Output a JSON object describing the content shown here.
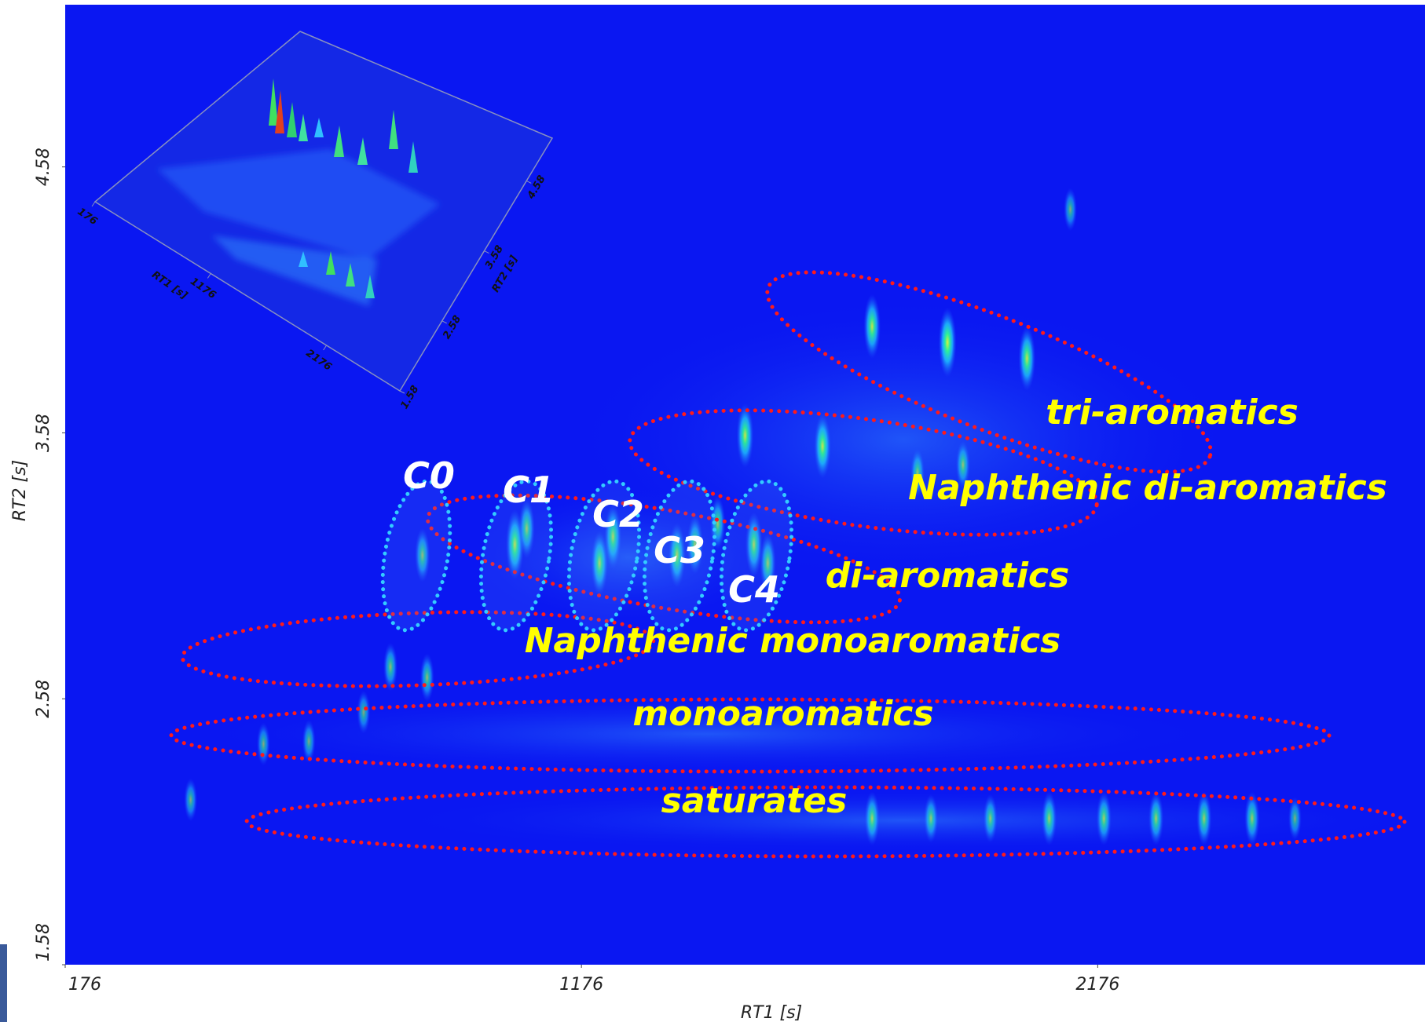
{
  "chart_data": {
    "type": "contour",
    "xlabel": "RT1 [s]",
    "ylabel": "RT2 [s]",
    "xlim": [
      176,
      2810
    ],
    "ylim": [
      1.58,
      5.19
    ],
    "xticks": [
      176,
      1176,
      2176
    ],
    "yticks": [
      1.58,
      2.58,
      3.58,
      4.58
    ],
    "x": [
      868,
      1047,
      1070,
      1211,
      1237,
      1361,
      1396,
      1510,
      1537,
      1440,
      1493,
      1643,
      1739,
      1885,
      2039,
      2123,
      1827,
      1915,
      1739,
      1853,
      1968,
      2082,
      2188,
      2289,
      2382,
      2475,
      2558,
      560,
      648,
      754,
      806,
      877,
      419
    ],
    "values": [
      3.12,
      3.16,
      3.22,
      3.09,
      3.19,
      3.12,
      3.16,
      3.16,
      3.09,
      3.24,
      3.57,
      3.53,
      3.98,
      3.92,
      3.86,
      4.42,
      3.43,
      3.46,
      2.13,
      2.13,
      2.13,
      2.13,
      2.13,
      2.13,
      2.13,
      2.13,
      2.13,
      2.41,
      2.42,
      2.53,
      2.7,
      2.66,
      2.2
    ],
    "intensity": [
      0.6,
      0.9,
      0.7,
      0.8,
      0.8,
      0.8,
      0.7,
      0.8,
      0.7,
      0.6,
      0.8,
      0.8,
      0.8,
      0.9,
      0.8,
      0.4,
      0.5,
      0.5,
      0.6,
      0.5,
      0.5,
      0.6,
      0.6,
      0.6,
      0.6,
      0.6,
      0.4,
      0.4,
      0.4,
      0.4,
      0.5,
      0.5,
      0.4
    ],
    "group_labels": [
      "tri-aromatics",
      "Naphthenic di-aromatics",
      "di-aromatics",
      "Naphthenic monoaromatics",
      "monoaromatics",
      "saturates"
    ],
    "carbon_labels": [
      "C0",
      "C1",
      "C2",
      "C3",
      "C4"
    ],
    "inset": {
      "xticks": [
        176,
        1176,
        2176
      ],
      "yticks": [
        1.58,
        2.58,
        3.58,
        4.58
      ],
      "xlabel": "RT1 [s]",
      "ylabel": "RT2 [s]"
    }
  }
}
